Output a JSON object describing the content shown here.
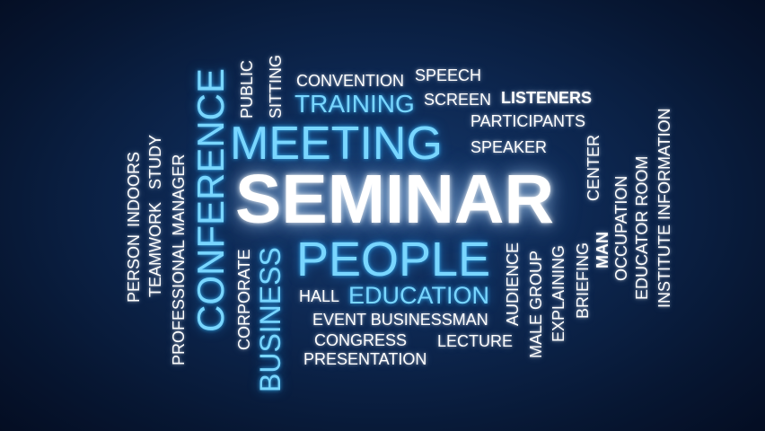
{
  "words": {
    "seminar": "SEMINAR",
    "meeting": "MEETING",
    "people": "PEOPLE",
    "conference": "CONFERENCE",
    "business": "BUSINESS",
    "training": "TRAINING",
    "education": "EDUCATION",
    "convention": "CONVENTION",
    "speech": "SPEECH",
    "screen": "SCREEN",
    "listeners": "LISTENERS",
    "participants": "PARTICIPANTS",
    "speaker": "SPEAKER",
    "public": "PUBLIC",
    "sitting": "SITTING",
    "person": "PERSON",
    "indoors": "INDOORS",
    "teamwork": "TEAMWORK",
    "study": "STUDY",
    "professional_manager": "PROFESSIONAL MANAGER",
    "corporate": "CORPORATE",
    "hall": "HALL",
    "event_businessman": "EVENT BUSINESSMAN",
    "congress": "CONGRESS",
    "lecture": "LECTURE",
    "presentation": "PRESENTATION",
    "audience": "AUDIENCE",
    "male_group": "MALE GROUP",
    "explaining": "EXPLAINING",
    "briefing": "BRIEFING",
    "center": "CENTER",
    "man": "MAN",
    "occupation": "OCCUPATION",
    "educator_room": "EDUCATOR ROOM",
    "institute_information": "INSTITUTE INFORMATION"
  },
  "colors": {
    "background_center": "#163a6e",
    "background_edge": "#040d22",
    "highlight_blue": "#79d6ff",
    "text_white": "#ffffff"
  }
}
